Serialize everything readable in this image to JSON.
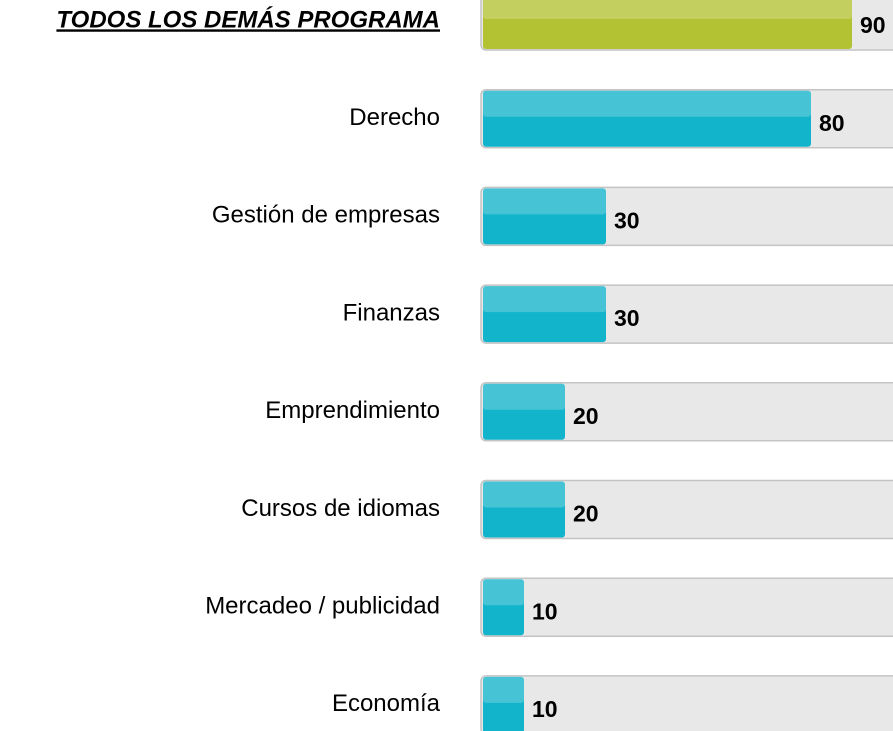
{
  "chart_data": {
    "type": "bar",
    "orientation": "horizontal",
    "categories": [
      "TODOS LOS DEMÁS PROGRAMA",
      "Derecho",
      "Gestión de empresas",
      "Finanzas",
      "Emprendimiento",
      "Cursos de idiomas",
      "Mercadeo / publicidad",
      "Economía"
    ],
    "values": [
      90,
      80,
      30,
      30,
      20,
      20,
      10,
      10
    ],
    "colors": [
      "#b3c232",
      "#12b4cb",
      "#12b4cb",
      "#12b4cb",
      "#12b4cb",
      "#12b4cb",
      "#12b4cb",
      "#12b4cb"
    ],
    "xlim": [
      0,
      100
    ]
  }
}
